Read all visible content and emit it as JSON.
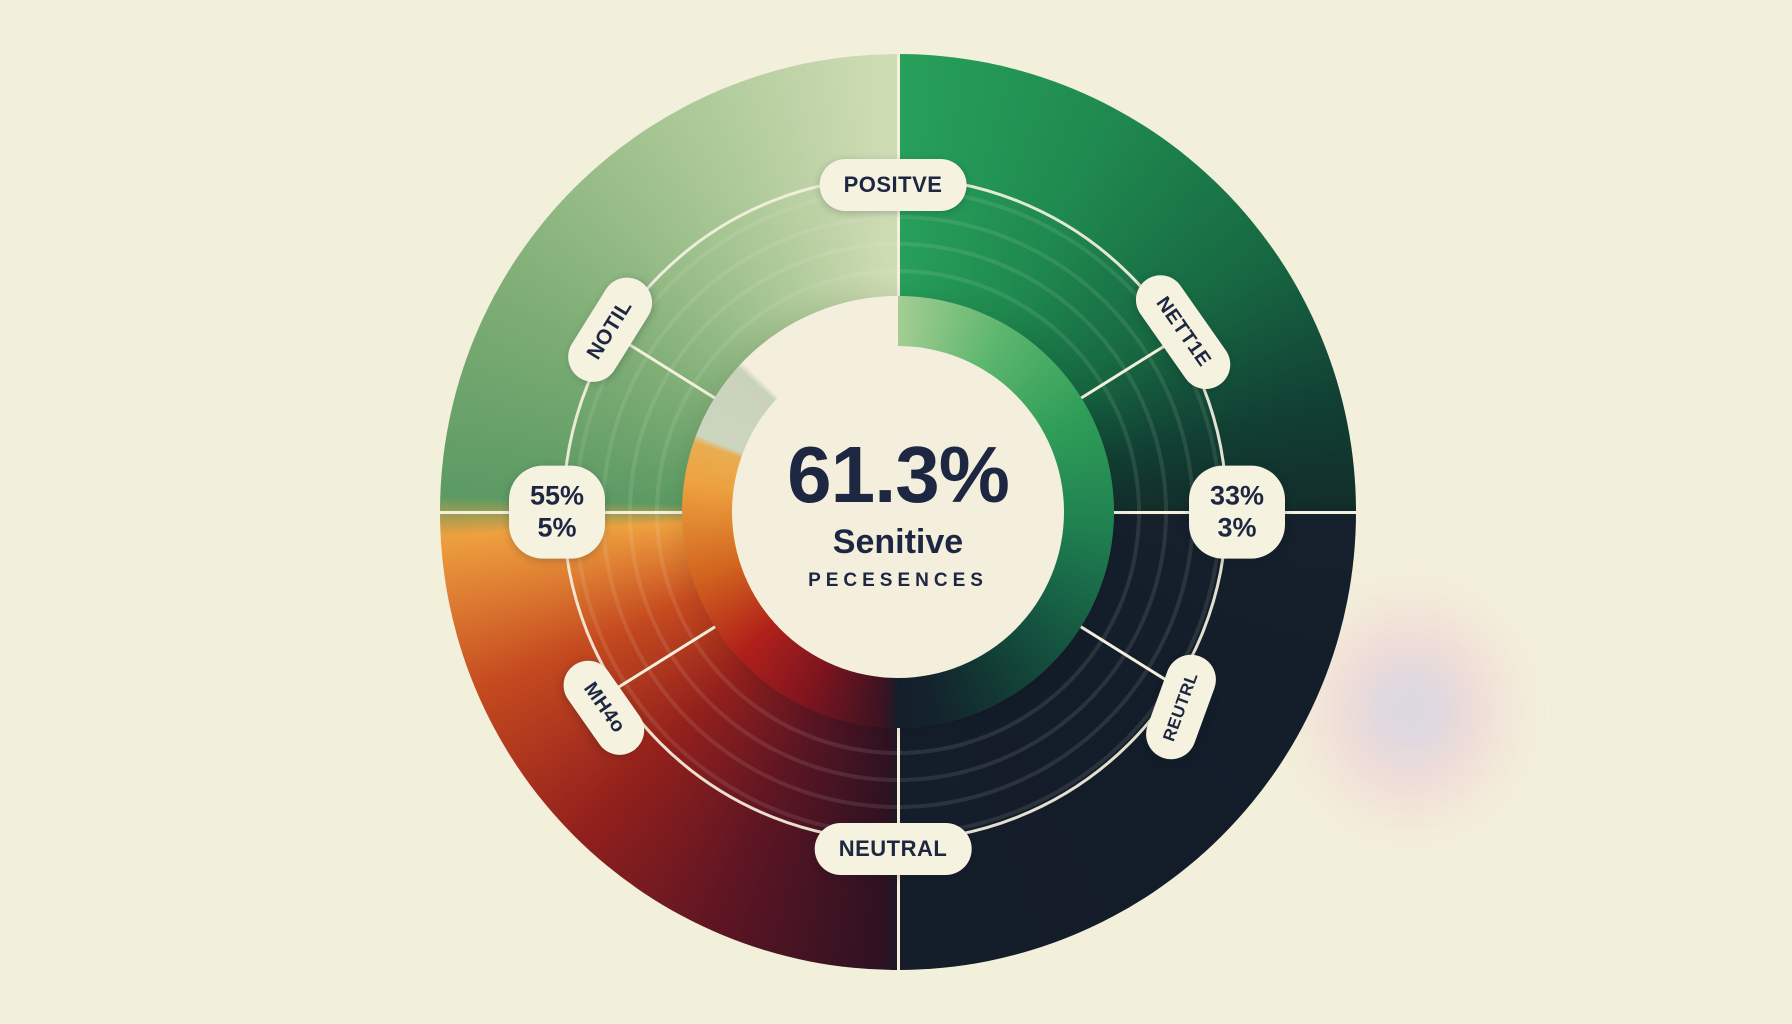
{
  "page": {
    "type": "sentiment-donut-infographic",
    "background": "#f2efdb"
  },
  "center": {
    "value": "61.3%",
    "label": "Senitive",
    "sublabel": "PECESENCES"
  },
  "labels": {
    "top": "POSITVE",
    "upper_left": "NOTIL",
    "upper_right": "NETT1E",
    "lower_left": "MH4o",
    "lower_right": "REUTRL",
    "bottom": "NEUTRAL"
  },
  "values": {
    "left": {
      "line1": "55%",
      "line2": "5%"
    },
    "right": {
      "line1": "33%",
      "line2": "3%"
    }
  },
  "colors": {
    "background": "#f2efdb",
    "ink": "#1d2742",
    "pill_bg": "#f6f2e0",
    "divider_line": "#f4f0dc",
    "quadrant_top_left": [
      "#cedcb4",
      "#4e9464"
    ],
    "quadrant_top_right": [
      "#27a05a",
      "#122e2b"
    ],
    "quadrant_bottom_right": [
      "#141d2a",
      "#1b2630"
    ],
    "quadrant_bottom_left": [
      "#eea03f",
      "#2e1222"
    ],
    "gauge_green": [
      "#a4cd92",
      "#2f9e58",
      "#13222c"
    ],
    "gauge_warm": [
      "#3a1322",
      "#b0201a",
      "#eda23f"
    ],
    "gauge_sage": "#ccd5be"
  },
  "chart_data": {
    "type": "pie",
    "subtype": "donut-gauge-infographic",
    "title": "61.3% Senitive Pecesences",
    "center_value": "61.3%",
    "center_label": "Senitive",
    "center_sublabel": "PECESENCES",
    "ring_labels": [
      {
        "text": "POSITVE",
        "angle_deg": 0,
        "position": "top"
      },
      {
        "text": "NETT1E",
        "angle_deg": 58,
        "position": "upper-right"
      },
      {
        "text": "REUTRL",
        "angle_deg": 122,
        "position": "lower-right"
      },
      {
        "text": "NEUTRAL",
        "angle_deg": 180,
        "position": "bottom"
      },
      {
        "text": "MH4o",
        "angle_deg": 236,
        "position": "lower-left"
      },
      {
        "text": "NOTIL",
        "angle_deg": 302,
        "position": "upper-left"
      }
    ],
    "data_labels": [
      {
        "lines": [
          "55%",
          "5%"
        ],
        "angle_deg": 270,
        "position": "left"
      },
      {
        "lines": [
          "33%",
          "3%"
        ],
        "angle_deg": 90,
        "position": "right"
      }
    ],
    "quadrants": [
      {
        "position": "top-right",
        "sweep_deg": [
          0,
          90
        ],
        "color_range": [
          "#27a05a",
          "#122e2b"
        ]
      },
      {
        "position": "bottom-right",
        "sweep_deg": [
          90,
          180
        ],
        "color_range": [
          "#141d2a",
          "#1b2630"
        ]
      },
      {
        "position": "bottom-left",
        "sweep_deg": [
          180,
          270
        ],
        "color_range": [
          "#2e1222",
          "#eea03f"
        ]
      },
      {
        "position": "top-left",
        "sweep_deg": [
          270,
          360
        ],
        "color_range": [
          "#4e9464",
          "#cedcb4"
        ]
      }
    ],
    "inner_gauge_arc": [
      {
        "start_deg": 0,
        "end_deg": 180,
        "color_range": [
          "#a4cd92",
          "#141e2b"
        ],
        "meaning": "green side"
      },
      {
        "start_deg": 184,
        "end_deg": 289,
        "color_range": [
          "#3a1322",
          "#eda23f"
        ],
        "meaning": "warm side"
      },
      {
        "start_deg": 291,
        "end_deg": 313,
        "color_range": [
          "#ccd5be",
          "#c9d2bb"
        ],
        "meaning": "sage segment"
      },
      {
        "start_deg": 314,
        "end_deg": 360,
        "color_range": [
          "#f3efdc",
          "#f3efdc"
        ],
        "meaning": "empty gap"
      }
    ],
    "legend_position": "none",
    "grid": false
  }
}
